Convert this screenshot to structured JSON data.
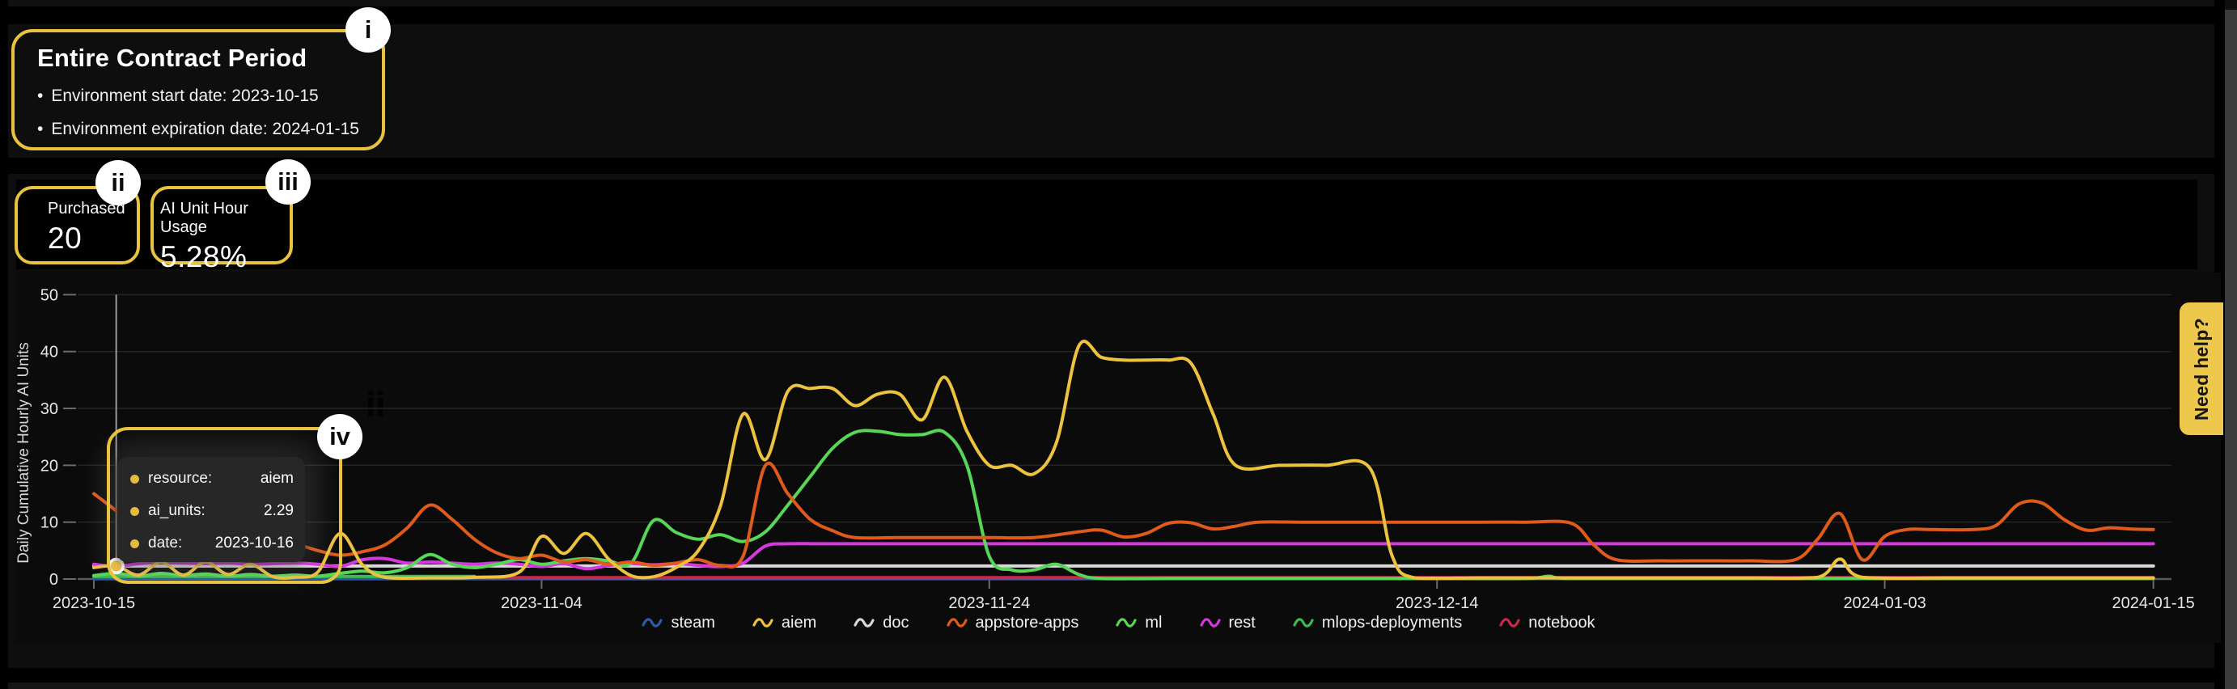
{
  "contract": {
    "title": "Entire Contract Period",
    "bullets": [
      "Environment start date: 2023-10-15",
      "Environment expiration date: 2024-01-15"
    ]
  },
  "kpis": [
    {
      "label": "Purchased",
      "value": "20"
    },
    {
      "label": "AI Unit Hour Usage",
      "value": "5.28%"
    }
  ],
  "help_tab": {
    "label": "Need help?"
  },
  "annotations": {
    "badges": [
      "i",
      "ii",
      "iii",
      "iv"
    ],
    "ghost_label": "ii"
  },
  "tooltip": {
    "rows": [
      {
        "label": "resource:",
        "value": "aiem"
      },
      {
        "label": "ai_units:",
        "value": "2.29"
      },
      {
        "label": "date:",
        "value": "2023-10-16"
      }
    ]
  },
  "chart_data": {
    "type": "line",
    "ylabel": "Daily Cumulative Hourly AI Units",
    "ylim": [
      0,
      50
    ],
    "y_ticks": [
      0,
      10,
      20,
      30,
      40,
      50
    ],
    "grid": true,
    "legend_position": "bottom",
    "x_start": "2023-10-15",
    "x_end": "2024-01-15",
    "x_tick_labels": [
      "2023-10-15",
      "2023-11-04",
      "2023-11-24",
      "2023-12-14",
      "2024-01-03",
      "2024-01-15"
    ],
    "x_tick_days": [
      0,
      20,
      40,
      60,
      80,
      92
    ],
    "hover": {
      "series": "aiem",
      "day": 1,
      "value": 2.29,
      "crosshair_color": "#999999",
      "marker_fill": "#edc23f"
    },
    "legend_order": [
      "steam",
      "aiem",
      "doc",
      "appstore-apps",
      "ml",
      "rest",
      "mlops-deployments",
      "notebook"
    ],
    "series": [
      {
        "name": "steam",
        "color": "#2a5caa",
        "points": [
          [
            0,
            0.05
          ],
          [
            92,
            0.05
          ]
        ]
      },
      {
        "name": "doc",
        "color": "#d9d9d9",
        "points": [
          [
            0,
            2.3
          ],
          [
            92,
            2.3
          ]
        ]
      },
      {
        "name": "mlops-deployments",
        "color": "#3dbb4e",
        "points": [
          [
            0,
            0.45
          ],
          [
            4,
            0.45
          ],
          [
            8,
            0.45
          ],
          [
            12,
            0.45
          ],
          [
            17,
            0.45
          ]
        ]
      },
      {
        "name": "notebook",
        "color": "#c9294a",
        "points": [
          [
            17,
            0.25
          ],
          [
            30,
            0.25
          ],
          [
            45,
            0.25
          ],
          [
            60,
            0.25
          ],
          [
            75,
            0.25
          ],
          [
            92,
            0.25
          ]
        ]
      },
      {
        "name": "rest",
        "color": "#d637df",
        "points": [
          [
            0,
            2.6
          ],
          [
            1,
            2.2
          ],
          [
            2,
            2.7
          ],
          [
            3,
            2.9
          ],
          [
            4,
            2.8
          ],
          [
            5,
            2.7
          ],
          [
            6,
            2.8
          ],
          [
            7,
            2.6
          ],
          [
            8,
            2.7
          ],
          [
            9,
            2.8
          ],
          [
            10,
            2.6
          ],
          [
            11,
            2.2
          ],
          [
            12,
            3.4
          ],
          [
            13,
            3.6
          ],
          [
            14,
            2.8
          ],
          [
            15,
            3
          ],
          [
            16,
            2.8
          ],
          [
            17,
            2.6
          ],
          [
            18,
            2.8
          ],
          [
            19,
            2.6
          ],
          [
            20,
            2.2
          ],
          [
            21,
            2.7
          ],
          [
            22,
            1.8
          ],
          [
            23,
            2.4
          ],
          [
            24,
            2.7
          ],
          [
            25,
            2.5
          ],
          [
            26,
            2.7
          ],
          [
            27,
            2.4
          ],
          [
            28,
            2.2
          ],
          [
            29,
            2.8
          ],
          [
            30,
            5.8
          ],
          [
            31,
            6.2
          ],
          [
            33,
            6.2
          ],
          [
            40,
            6.2
          ],
          [
            50,
            6.2
          ],
          [
            60,
            6.2
          ],
          [
            70,
            6.2
          ],
          [
            80,
            6.2
          ],
          [
            92,
            6.2
          ]
        ]
      },
      {
        "name": "ml",
        "color": "#57d657",
        "points": [
          [
            0,
            0.6
          ],
          [
            1,
            1
          ],
          [
            2,
            0.5
          ],
          [
            3,
            1
          ],
          [
            4,
            0.6
          ],
          [
            5,
            0.9
          ],
          [
            6,
            0.5
          ],
          [
            7,
            0.8
          ],
          [
            8,
            0.5
          ],
          [
            9,
            0.7
          ],
          [
            10,
            0.5
          ],
          [
            11,
            1
          ],
          [
            12,
            1.4
          ],
          [
            13,
            1.1
          ],
          [
            14,
            2
          ],
          [
            15,
            4.3
          ],
          [
            16,
            2.6
          ],
          [
            17,
            2
          ],
          [
            18,
            2.6
          ],
          [
            19,
            3.4
          ],
          [
            20,
            2.6
          ],
          [
            21,
            3.2
          ],
          [
            22,
            3.6
          ],
          [
            23,
            3.2
          ],
          [
            24,
            2.8
          ],
          [
            25,
            10.3
          ],
          [
            26,
            8.2
          ],
          [
            27,
            7
          ],
          [
            28,
            7.8
          ],
          [
            29,
            6.6
          ],
          [
            30,
            8.3
          ],
          [
            31,
            13
          ],
          [
            32,
            18
          ],
          [
            33,
            23
          ],
          [
            34,
            25.8
          ],
          [
            35,
            26
          ],
          [
            36,
            25.4
          ],
          [
            37,
            25.4
          ],
          [
            38,
            25.8
          ],
          [
            39,
            20
          ],
          [
            40,
            4
          ],
          [
            41,
            1.6
          ],
          [
            42,
            1.6
          ],
          [
            43,
            2.6
          ],
          [
            44,
            0.8
          ],
          [
            45,
            0.1
          ],
          [
            48,
            0.1
          ],
          [
            52,
            0.1
          ],
          [
            56,
            0.1
          ],
          [
            60,
            0.1
          ],
          [
            64,
            0.1
          ],
          [
            65,
            0.5
          ],
          [
            66,
            0.1
          ],
          [
            72,
            0.1
          ],
          [
            80,
            0.1
          ],
          [
            86,
            0.1
          ],
          [
            92,
            0.1
          ]
        ]
      },
      {
        "name": "appstore-apps",
        "color": "#e05a1c",
        "points": [
          [
            0,
            15
          ],
          [
            1,
            12
          ],
          [
            2,
            8.8
          ],
          [
            3,
            12.8
          ],
          [
            4,
            10.5
          ],
          [
            5,
            6.5
          ],
          [
            6,
            4.8
          ],
          [
            7,
            4
          ],
          [
            8,
            5
          ],
          [
            9,
            6
          ],
          [
            10,
            5
          ],
          [
            11,
            4.2
          ],
          [
            12,
            4.8
          ],
          [
            13,
            6
          ],
          [
            14,
            9
          ],
          [
            15,
            13
          ],
          [
            16,
            10.5
          ],
          [
            17,
            7
          ],
          [
            18,
            4.6
          ],
          [
            19,
            3.6
          ],
          [
            20,
            4.2
          ],
          [
            21,
            3
          ],
          [
            22,
            3.4
          ],
          [
            23,
            2.6
          ],
          [
            24,
            3
          ],
          [
            25,
            2.4
          ],
          [
            26,
            2.8
          ],
          [
            27,
            3.4
          ],
          [
            28,
            2.4
          ],
          [
            29,
            4
          ],
          [
            30,
            20
          ],
          [
            31,
            15
          ],
          [
            32,
            10.5
          ],
          [
            33,
            8.5
          ],
          [
            34,
            7.3
          ],
          [
            36,
            7.3
          ],
          [
            38,
            7.3
          ],
          [
            40,
            7.3
          ],
          [
            42,
            7.3
          ],
          [
            44,
            8.3
          ],
          [
            45,
            8.6
          ],
          [
            46,
            7.4
          ],
          [
            47,
            8
          ],
          [
            48,
            9.8
          ],
          [
            49,
            9.9
          ],
          [
            50,
            8.8
          ],
          [
            51,
            9.3
          ],
          [
            52,
            10
          ],
          [
            54,
            10
          ],
          [
            56,
            10
          ],
          [
            58,
            10
          ],
          [
            60,
            10
          ],
          [
            62,
            10
          ],
          [
            64,
            10
          ],
          [
            66,
            9.8
          ],
          [
            67,
            6
          ],
          [
            68,
            3.4
          ],
          [
            70,
            3.2
          ],
          [
            72,
            3.2
          ],
          [
            74,
            3.2
          ],
          [
            76,
            3.4
          ],
          [
            77,
            7
          ],
          [
            78,
            11.5
          ],
          [
            79,
            3.4
          ],
          [
            80,
            7.5
          ],
          [
            81,
            8.7
          ],
          [
            82,
            8.7
          ],
          [
            84,
            8.7
          ],
          [
            85,
            9.5
          ],
          [
            86,
            13.2
          ],
          [
            87,
            13.4
          ],
          [
            88,
            10.5
          ],
          [
            89,
            8.6
          ],
          [
            90,
            9
          ],
          [
            91,
            8.8
          ],
          [
            92,
            8.7
          ]
        ]
      },
      {
        "name": "aiem",
        "color": "#edc23f",
        "points": [
          [
            0,
            2
          ],
          [
            1,
            2.29
          ],
          [
            2,
            0.7
          ],
          [
            3,
            3
          ],
          [
            4,
            0.7
          ],
          [
            5,
            3
          ],
          [
            6,
            0.8
          ],
          [
            7,
            2.6
          ],
          [
            8,
            0.4
          ],
          [
            9,
            0.3
          ],
          [
            10,
            1.2
          ],
          [
            11,
            8
          ],
          [
            12,
            2.5
          ],
          [
            13,
            0.3
          ],
          [
            15,
            0.2
          ],
          [
            17,
            0.3
          ],
          [
            19,
            1.2
          ],
          [
            20,
            7.5
          ],
          [
            21,
            4.5
          ],
          [
            22,
            8
          ],
          [
            23,
            3.5
          ],
          [
            24,
            0.6
          ],
          [
            25,
            0.4
          ],
          [
            26,
            2
          ],
          [
            27,
            5
          ],
          [
            28,
            13
          ],
          [
            29,
            29
          ],
          [
            30,
            21
          ],
          [
            31,
            33
          ],
          [
            32,
            33.5
          ],
          [
            33,
            33.5
          ],
          [
            34,
            30.5
          ],
          [
            35,
            32.5
          ],
          [
            36,
            32.5
          ],
          [
            37,
            28
          ],
          [
            38,
            35.5
          ],
          [
            39,
            26
          ],
          [
            40,
            20
          ],
          [
            41,
            20
          ],
          [
            42,
            18.5
          ],
          [
            43,
            24
          ],
          [
            44,
            41
          ],
          [
            45,
            39
          ],
          [
            46,
            38.5
          ],
          [
            47,
            38.5
          ],
          [
            48,
            38.5
          ],
          [
            49,
            38
          ],
          [
            50,
            29
          ],
          [
            51,
            20
          ],
          [
            53,
            20
          ],
          [
            55,
            20
          ],
          [
            57,
            19.5
          ],
          [
            58,
            4
          ],
          [
            59,
            0.2
          ],
          [
            62,
            0.2
          ],
          [
            66,
            0.2
          ],
          [
            70,
            0.2
          ],
          [
            74,
            0.2
          ],
          [
            77,
            0.3
          ],
          [
            78,
            3.5
          ],
          [
            79,
            0.3
          ],
          [
            83,
            0.2
          ],
          [
            88,
            0.2
          ],
          [
            92,
            0.2
          ]
        ]
      }
    ]
  }
}
